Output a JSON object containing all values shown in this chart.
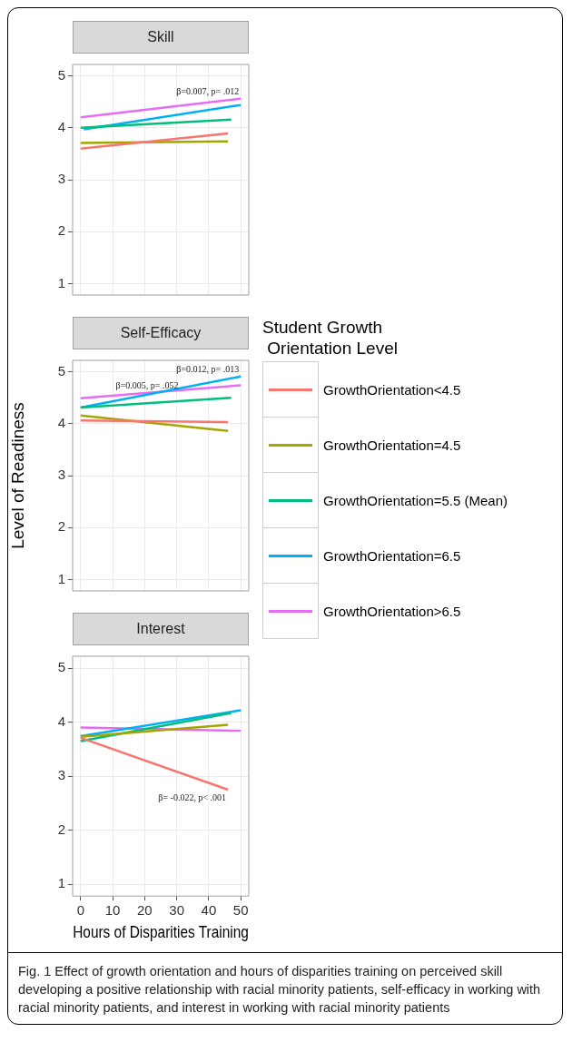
{
  "chart_data": [
    {
      "type": "line",
      "title": "Skill",
      "xlim": [
        -2.5,
        52.5
      ],
      "ylim": [
        0.78,
        5.22
      ],
      "xticks": [
        0,
        10,
        20,
        30,
        40,
        50
      ],
      "yticks": [
        1,
        2,
        3,
        4,
        5
      ],
      "grid": true,
      "tick_labels": "y",
      "marker": "none",
      "series": [
        {
          "color": "#f8766d",
          "x": [
            0,
            46
          ],
          "values": [
            3.6,
            3.89
          ]
        },
        {
          "color": "#a3a500",
          "x": [
            0,
            46
          ],
          "values": [
            3.71,
            3.74
          ]
        },
        {
          "color": "#00bf7d",
          "x": [
            0,
            47
          ],
          "values": [
            4.0,
            4.16
          ]
        },
        {
          "color": "#00b0f6",
          "x": [
            1,
            50
          ],
          "values": [
            3.97,
            4.44
          ]
        },
        {
          "color": "#e76bf3",
          "x": [
            0,
            50
          ],
          "values": [
            4.2,
            4.56
          ]
        }
      ],
      "annotations": [
        {
          "text": "β=0.007, p= .012",
          "x": 50,
          "y": 4.56
        }
      ]
    },
    {
      "type": "line",
      "title": "Self-Efficacy",
      "ylabel": "Level of Readiness",
      "xlim": [
        -2.5,
        52.5
      ],
      "ylim": [
        0.78,
        5.22
      ],
      "xticks": [
        0,
        10,
        20,
        30,
        40,
        50
      ],
      "yticks": [
        1,
        2,
        3,
        4,
        5
      ],
      "grid": true,
      "tick_labels": "y",
      "marker": "none",
      "legend": "right",
      "legend_title": "Student Growth\n Orientation Level",
      "series": [
        {
          "name": "GrowthOrientation<4.5",
          "color": "#f8766d",
          "x": [
            0,
            46
          ],
          "values": [
            4.06,
            4.03
          ]
        },
        {
          "name": "GrowthOrientation=4.5",
          "color": "#a3a500",
          "x": [
            0,
            46
          ],
          "values": [
            4.16,
            3.86
          ]
        },
        {
          "name": "GrowthOrientation=5.5 (Mean)",
          "color": "#00bf7d",
          "x": [
            0,
            47
          ],
          "values": [
            4.31,
            4.5
          ]
        },
        {
          "name": "GrowthOrientation=6.5",
          "color": "#00b0f6",
          "x": [
            0,
            50
          ],
          "values": [
            4.31,
            4.91
          ]
        },
        {
          "name": "GrowthOrientation>6.5",
          "color": "#e76bf3",
          "x": [
            0,
            50
          ],
          "values": [
            4.49,
            4.74
          ]
        }
      ],
      "annotations": [
        {
          "text": "β=0.012, p= .013",
          "x": 50,
          "y": 4.91
        },
        {
          "text": "β=0.005, p= .052",
          "x": 11,
          "y": 4.61
        }
      ]
    },
    {
      "type": "line",
      "title": "Interest",
      "xlabel": "Hours of Disparities Training",
      "xlim": [
        -2.5,
        52.5
      ],
      "ylim": [
        0.78,
        5.22
      ],
      "xticks": [
        0,
        10,
        20,
        30,
        40,
        50
      ],
      "yticks": [
        1,
        2,
        3,
        4,
        5
      ],
      "grid": true,
      "marker": "none",
      "series": [
        {
          "color": "#f8766d",
          "x": [
            0,
            46
          ],
          "values": [
            3.71,
            2.75
          ]
        },
        {
          "color": "#a3a500",
          "x": [
            0,
            46
          ],
          "values": [
            3.73,
            3.95
          ]
        },
        {
          "color": "#00bf7d",
          "x": [
            0,
            47
          ],
          "values": [
            3.65,
            4.17
          ]
        },
        {
          "color": "#00b0f6",
          "x": [
            0,
            50
          ],
          "values": [
            3.74,
            4.22
          ]
        },
        {
          "color": "#e76bf3",
          "x": [
            0,
            50
          ],
          "values": [
            3.9,
            3.84
          ]
        }
      ],
      "annotations": [
        {
          "text": "β= -0.022, p< .001",
          "x": 46,
          "y": 2.75
        },
        "Fig. 1 Effect of growth orientation and hours of disparities training on perceived skill developing a positive relationship with racial minority patients, self-efficacy in working with racial minority patients, and interest in working with racial minority patients"
      ]
    }
  ]
}
